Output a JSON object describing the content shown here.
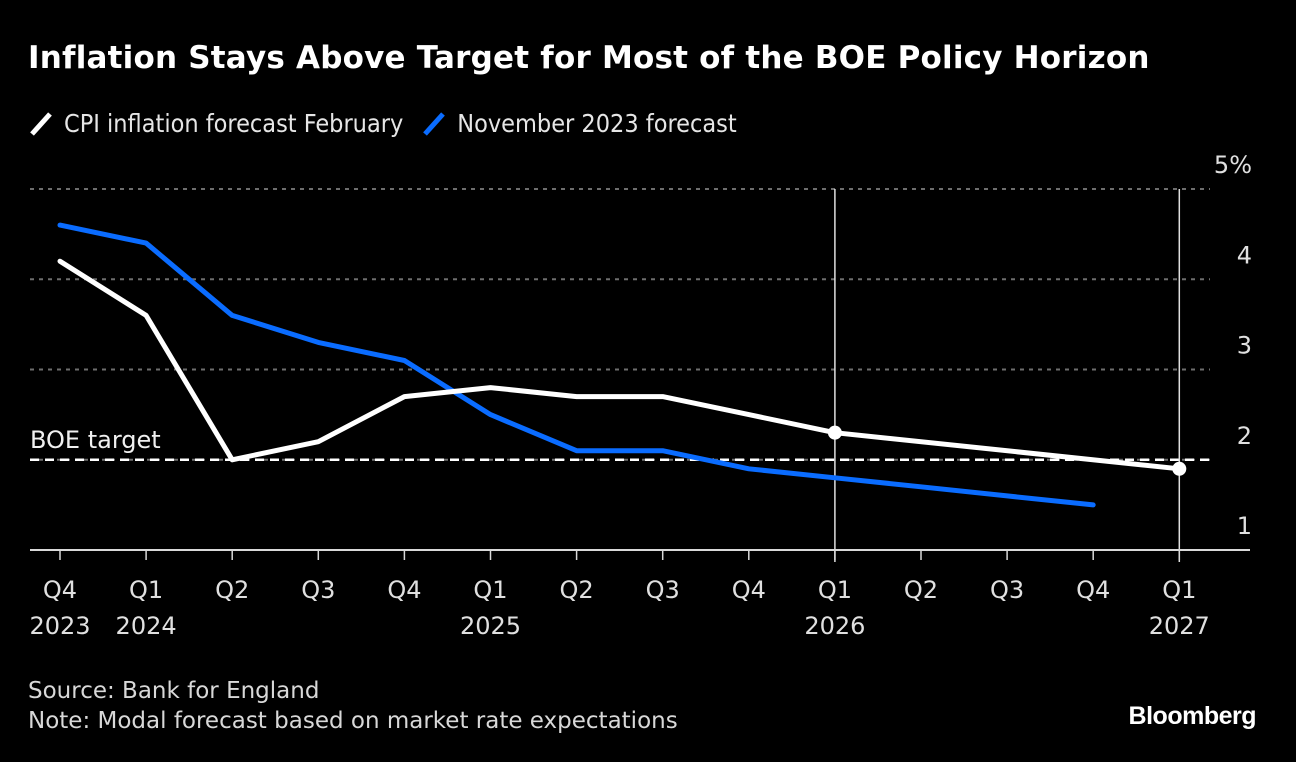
{
  "colors": {
    "background": "#000000",
    "series_feb": "#ffffff",
    "series_nov": "#0a6cff",
    "grid": "#6e6e6e",
    "axis": "#d9d9d9",
    "target": "#ffffff"
  },
  "chart_data": {
    "type": "line",
    "title": "Inflation Stays Above Target for Most of the BOE Policy Horizon",
    "xlabel": "",
    "ylabel": "",
    "y_unit": "%",
    "ylim": [
      1,
      5
    ],
    "yticks": [
      1,
      2,
      3,
      4,
      5
    ],
    "ytick_labels": [
      "1",
      "2",
      "3",
      "4",
      "5%"
    ],
    "y_axis_side": "right",
    "grid": true,
    "legend_position": "top-left",
    "x": [
      "Q4 2023",
      "Q1 2024",
      "Q2 2024",
      "Q3 2024",
      "Q4 2024",
      "Q1 2025",
      "Q2 2025",
      "Q3 2025",
      "Q4 2025",
      "Q1 2026",
      "Q2 2026",
      "Q3 2026",
      "Q4 2026",
      "Q1 2027"
    ],
    "x_tick_labels": [
      {
        "q": "Q4",
        "year": "2023"
      },
      {
        "q": "Q1",
        "year": "2024"
      },
      {
        "q": "Q2",
        "year": ""
      },
      {
        "q": "Q3",
        "year": ""
      },
      {
        "q": "Q4",
        "year": ""
      },
      {
        "q": "Q1",
        "year": "2025"
      },
      {
        "q": "Q2",
        "year": ""
      },
      {
        "q": "Q3",
        "year": ""
      },
      {
        "q": "Q4",
        "year": ""
      },
      {
        "q": "Q1",
        "year": "2026"
      },
      {
        "q": "Q2",
        "year": ""
      },
      {
        "q": "Q3",
        "year": ""
      },
      {
        "q": "Q4",
        "year": ""
      },
      {
        "q": "Q1",
        "year": "2027"
      }
    ],
    "series": [
      {
        "name": "CPI inflation forecast February",
        "color": "#ffffff",
        "values": [
          4.2,
          3.6,
          2.0,
          2.2,
          2.7,
          2.8,
          2.7,
          2.7,
          2.5,
          2.3,
          null,
          null,
          null,
          1.9
        ],
        "markers_at": [
          "Q1 2026",
          "Q1 2027"
        ]
      },
      {
        "name": "November 2023 forecast",
        "color": "#0a6cff",
        "values": [
          4.6,
          4.4,
          3.6,
          3.3,
          3.1,
          2.5,
          2.1,
          2.1,
          1.9,
          1.8,
          1.7,
          1.6,
          1.5,
          null
        ]
      }
    ],
    "reference_lines": [
      {
        "type": "horizontal",
        "value": 2.0,
        "label": "BOE target",
        "style": "dashed"
      },
      {
        "type": "vertical",
        "at": "Q1 2026"
      },
      {
        "type": "vertical",
        "at": "Q1 2027"
      }
    ]
  },
  "header": {
    "title": "Inflation Stays Above Target for Most of the BOE Policy Horizon"
  },
  "legend": [
    {
      "label": "CPI inflation forecast February",
      "color": "#ffffff"
    },
    {
      "label": "November 2023 forecast",
      "color": "#0a6cff"
    }
  ],
  "annotations": {
    "target_label": "BOE target"
  },
  "footer": {
    "source": "Source: Bank for England",
    "note": "Note: Modal forecast based on market rate expectations",
    "brand": "Bloomberg"
  }
}
